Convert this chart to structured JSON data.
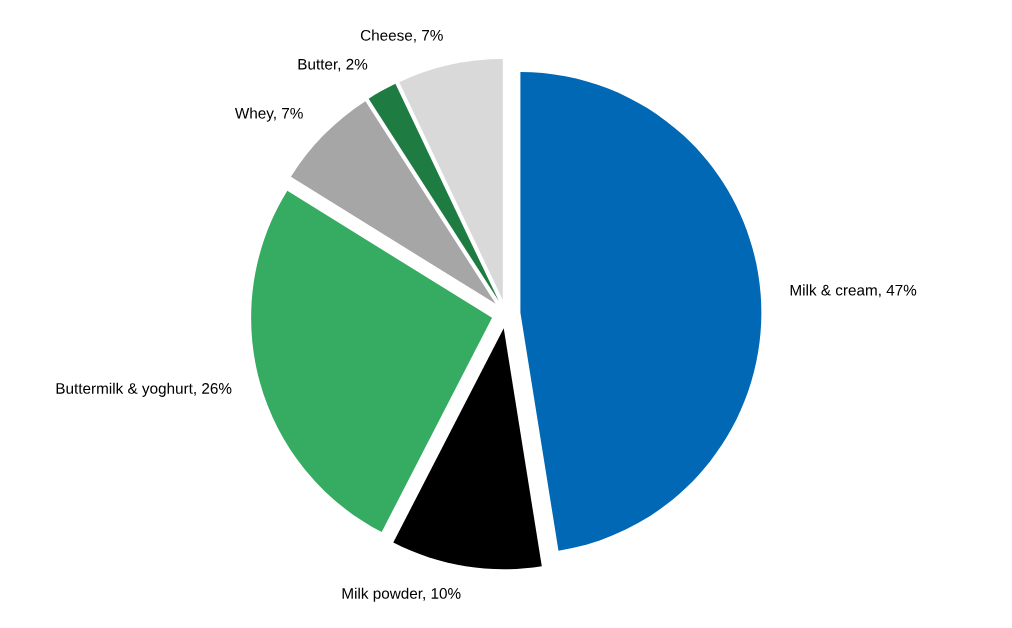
{
  "chart_data": {
    "type": "pie",
    "categories": [
      "Milk & cream",
      "Milk powder",
      "Buttermilk & yoghurt",
      "Whey",
      "Butter",
      "Cheese"
    ],
    "values": [
      47,
      10,
      26,
      7,
      2,
      7
    ],
    "value_labels": [
      "47%",
      "10%",
      "26%",
      "7%",
      "2%",
      "7%"
    ],
    "colors": [
      "#0068b4",
      "#000000",
      "#36ab62",
      "#a6a6a6",
      "#1e7b42",
      "#d9d9d9"
    ],
    "legend": false
  }
}
